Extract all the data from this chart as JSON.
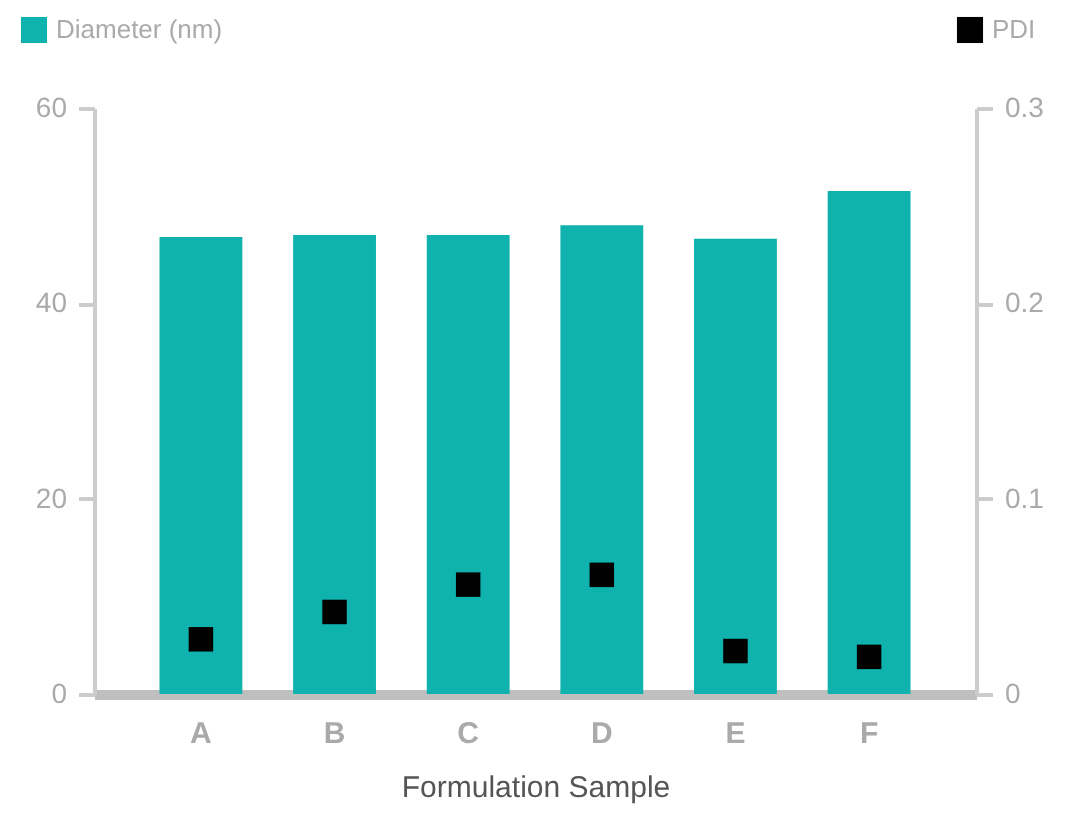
{
  "chart_data": {
    "type": "bar",
    "xlabel": "Formulation Sample",
    "categories": [
      "A",
      "B",
      "C",
      "D",
      "E",
      "F"
    ],
    "series": [
      {
        "name": "Diameter (nm)",
        "color": "#0fb2ad",
        "values": [
          46.8,
          47.0,
          47.0,
          48.0,
          46.6,
          51.5
        ]
      },
      {
        "name": "PDI",
        "type": "scatter",
        "axis": "y2",
        "color": "#000000",
        "marker": "square",
        "values": [
          0.028,
          0.042,
          0.056,
          0.061,
          0.022,
          0.019
        ]
      }
    ],
    "ylim": [
      0,
      60
    ],
    "yticks": [
      0,
      20,
      40,
      60
    ],
    "y2lim": [
      0,
      0.3
    ],
    "y2ticks": [
      0,
      0.1,
      0.2,
      0.3
    ],
    "legend": "top",
    "grid": false
  }
}
